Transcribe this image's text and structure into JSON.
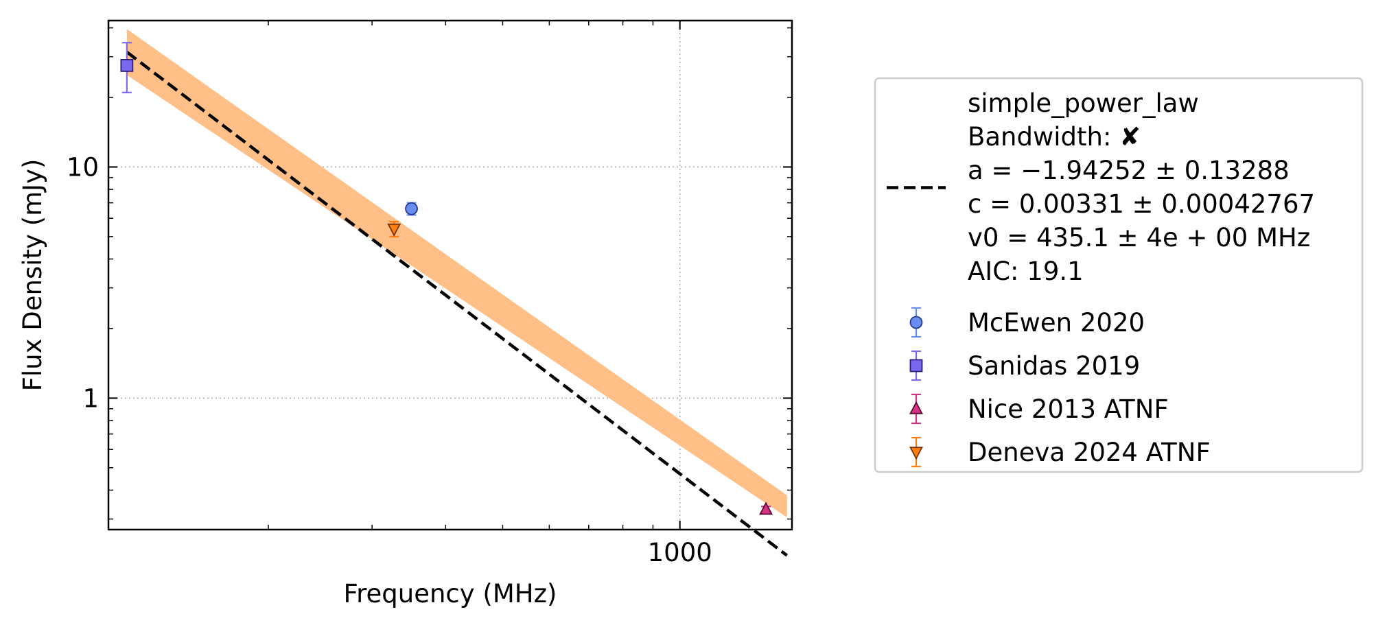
{
  "chart_data": {
    "type": "scatter",
    "xlabel": "Frequency (MHz)",
    "ylabel": "Flux Density (mJy)",
    "x_scale": "log",
    "y_scale": "log",
    "xlim": [
      107,
      1550
    ],
    "ylim": [
      0.27,
      43
    ],
    "x_major_ticks": [
      {
        "value": 1000,
        "label": "1000"
      }
    ],
    "x_minor_ticks": [
      200,
      300,
      400,
      500,
      600,
      700,
      800,
      900
    ],
    "y_major_ticks": [
      {
        "value": 1,
        "label": "1"
      },
      {
        "value": 10,
        "label": "10"
      }
    ],
    "y_minor_ticks": [
      0.3,
      0.4,
      0.5,
      0.6,
      0.7,
      0.8,
      0.9,
      2,
      3,
      4,
      5,
      6,
      7,
      8,
      9,
      20,
      30,
      40
    ],
    "grid": true,
    "legend_position": "outside-right",
    "fit": {
      "name": "simple_power_law",
      "legend_lines": [
        "simple_power_law",
        "Bandwidth: ✘",
        "a = −1.94252 ± 0.13288",
        "c = 0.00331 ± 0.00042767",
        "v0 = 435.1 ± 4e + 00 MHz",
        "AIC: 19.1"
      ],
      "a": -1.94252,
      "c": 0.00331,
      "v0": 435.1,
      "x_range": [
        115,
        1520
      ],
      "band_upper": [
        [
          115,
          39.5
        ],
        [
          1520,
          0.38
        ]
      ],
      "band_lower": [
        [
          115,
          25.0
        ],
        [
          1520,
          0.305
        ]
      ],
      "line_color": "#000000",
      "band_color": "#ffbf86"
    },
    "series": [
      {
        "name": "McEwen 2020",
        "marker": "circle",
        "color": "#6a8ef0",
        "edge": "#1f3b8f",
        "points": [
          {
            "x": 350,
            "y": 6.6,
            "yerr": 0.4
          }
        ]
      },
      {
        "name": "Sanidas 2019",
        "marker": "square",
        "color": "#7b68ee",
        "edge": "#2a1f7a",
        "points": [
          {
            "x": 115,
            "y": 27.5,
            "yerr_low": 6.5,
            "yerr_high": 7.0
          }
        ]
      },
      {
        "name": "Nice 2013 ATNF",
        "marker": "triangle-up",
        "color": "#d63384",
        "edge": "#5a0a30",
        "points": [
          {
            "x": 1400,
            "y": 0.33,
            "yerr": 0.01
          }
        ]
      },
      {
        "name": "Deneva 2024 ATNF",
        "marker": "triangle-down",
        "color": "#ff7f0e",
        "edge": "#7a3300",
        "points": [
          {
            "x": 327,
            "y": 5.4,
            "yerr": 0.4
          }
        ]
      }
    ]
  }
}
